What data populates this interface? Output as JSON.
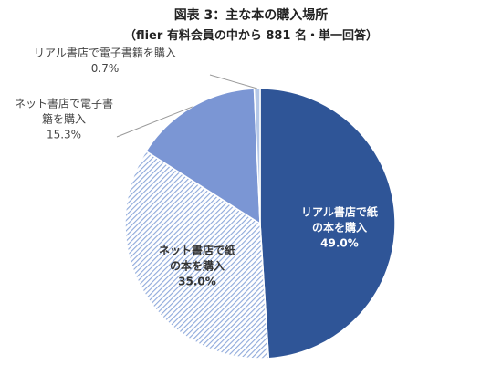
{
  "header": {
    "title": "図表 3：主な本の購入場所",
    "subtitle": "（flier 有料会員の中から 881 名・単一回答）"
  },
  "chart_data": {
    "type": "pie",
    "title": "図表 3：主な本の購入場所",
    "subtitle": "（flier 有料会員の中から 881 名・単一回答）",
    "slices": [
      {
        "label_lines": [
          "リアル書店で紙",
          "の本を購入"
        ],
        "percent_label": "49.0%",
        "value": 49.0,
        "color": "#2f5597",
        "pattern": "solid",
        "label_position": "inside"
      },
      {
        "label_lines": [
          "ネット書店で紙",
          "の本を購入"
        ],
        "percent_label": "35.0%",
        "value": 35.0,
        "color": "#8ea9db",
        "pattern": "hatched",
        "label_position": "inside"
      },
      {
        "label_lines": [
          "ネット書店で電子書",
          "籍を購入"
        ],
        "percent_label": "15.3%",
        "value": 15.3,
        "color": "#7b96d4",
        "pattern": "solid",
        "label_position": "outside-left"
      },
      {
        "label_lines": [
          "リアル書店で電子書籍を購入"
        ],
        "percent_label": "0.7%",
        "value": 0.7,
        "color": "#b4c7e7",
        "pattern": "solid",
        "label_position": "outside-top-left"
      }
    ],
    "start_angle_deg": 0,
    "direction": "clockwise"
  }
}
